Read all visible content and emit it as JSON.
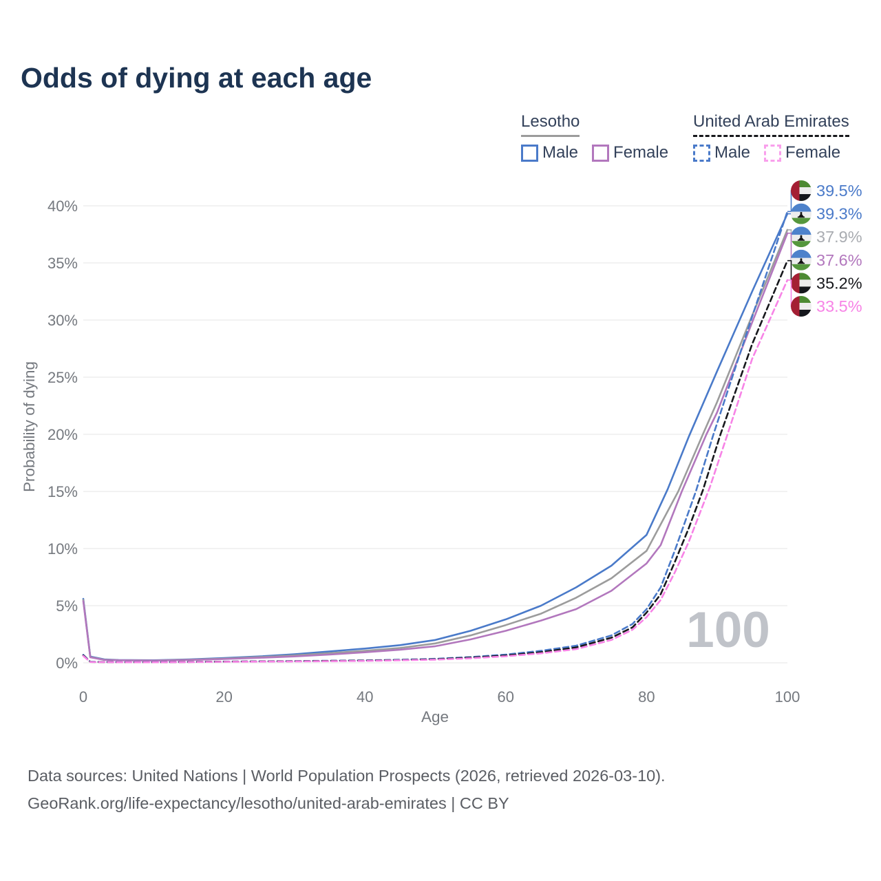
{
  "title": "Odds of dying at each age",
  "legend": {
    "groups": [
      {
        "country": "Lesotho",
        "underline_style": "solid",
        "underline_color": "#9b9b9b",
        "items": [
          {
            "label": "Male",
            "color": "#4a7ac9",
            "dash": false
          },
          {
            "label": "Female",
            "color": "#b277bd",
            "dash": false
          }
        ]
      },
      {
        "country": "United Arab Emirates",
        "underline_style": "dashed",
        "underline_color": "#17181c",
        "items": [
          {
            "label": "Male",
            "color": "#4a7ac9",
            "dash": true
          },
          {
            "label": "Female",
            "color": "#f9a0ec",
            "dash": true
          }
        ]
      }
    ]
  },
  "chart_data": {
    "type": "line",
    "title": "Odds of dying at each age",
    "xlabel": "Age",
    "ylabel": "Probability of dying",
    "xlim": [
      0,
      100
    ],
    "ylim": [
      0,
      42
    ],
    "x_ticks": [
      0,
      20,
      40,
      60,
      80,
      100
    ],
    "y_ticks": [
      "0%",
      "5%",
      "10%",
      "15%",
      "20%",
      "25%",
      "30%",
      "35%",
      "40%"
    ],
    "grid": true,
    "legend_position": "top-right",
    "watermark": "100",
    "series": [
      {
        "name": "Lesotho Male",
        "color": "#4a7ac9",
        "dash": false,
        "points": [
          [
            0,
            5.6
          ],
          [
            1,
            0.55
          ],
          [
            3,
            0.3
          ],
          [
            5,
            0.25
          ],
          [
            10,
            0.22
          ],
          [
            15,
            0.3
          ],
          [
            20,
            0.42
          ],
          [
            25,
            0.56
          ],
          [
            30,
            0.75
          ],
          [
            35,
            1.0
          ],
          [
            40,
            1.25
          ],
          [
            45,
            1.55
          ],
          [
            50,
            2.0
          ],
          [
            55,
            2.8
          ],
          [
            60,
            3.8
          ],
          [
            65,
            5.0
          ],
          [
            70,
            6.6
          ],
          [
            75,
            8.5
          ],
          [
            80,
            11.2
          ],
          [
            83,
            15.2
          ],
          [
            86,
            19.8
          ],
          [
            90,
            25.5
          ],
          [
            95,
            32.5
          ],
          [
            100,
            39.3
          ]
        ]
      },
      {
        "name": "Lesotho Total",
        "color": "#9c9c9c",
        "dash": false,
        "points": [
          [
            0,
            5.5
          ],
          [
            1,
            0.5
          ],
          [
            3,
            0.27
          ],
          [
            5,
            0.23
          ],
          [
            10,
            0.2
          ],
          [
            15,
            0.27
          ],
          [
            20,
            0.37
          ],
          [
            25,
            0.5
          ],
          [
            30,
            0.65
          ],
          [
            35,
            0.85
          ],
          [
            40,
            1.05
          ],
          [
            45,
            1.3
          ],
          [
            50,
            1.7
          ],
          [
            55,
            2.4
          ],
          [
            60,
            3.3
          ],
          [
            65,
            4.3
          ],
          [
            70,
            5.7
          ],
          [
            75,
            7.4
          ],
          [
            80,
            9.8
          ],
          [
            84.5,
            15
          ],
          [
            88,
            20
          ],
          [
            90,
            22.8
          ],
          [
            95,
            30.4
          ],
          [
            100,
            37.9
          ]
        ]
      },
      {
        "name": "Lesotho Female",
        "color": "#b277bd",
        "dash": false,
        "points": [
          [
            0,
            5.4
          ],
          [
            1,
            0.48
          ],
          [
            3,
            0.25
          ],
          [
            5,
            0.22
          ],
          [
            10,
            0.19
          ],
          [
            15,
            0.25
          ],
          [
            20,
            0.33
          ],
          [
            25,
            0.44
          ],
          [
            30,
            0.56
          ],
          [
            35,
            0.72
          ],
          [
            40,
            0.92
          ],
          [
            45,
            1.15
          ],
          [
            50,
            1.45
          ],
          [
            55,
            2.05
          ],
          [
            60,
            2.8
          ],
          [
            65,
            3.7
          ],
          [
            70,
            4.7
          ],
          [
            75,
            6.3
          ],
          [
            80,
            8.7
          ],
          [
            82,
            10.3
          ],
          [
            85,
            15
          ],
          [
            88.5,
            20
          ],
          [
            90,
            21.9
          ],
          [
            95,
            29.8
          ],
          [
            100,
            37.6
          ]
        ]
      },
      {
        "name": "United Arab Emirates Male",
        "color": "#4a7ac9",
        "dash": true,
        "points": [
          [
            0,
            0.7
          ],
          [
            1,
            0.09
          ],
          [
            5,
            0.06
          ],
          [
            10,
            0.06
          ],
          [
            15,
            0.08
          ],
          [
            20,
            0.11
          ],
          [
            30,
            0.15
          ],
          [
            40,
            0.21
          ],
          [
            45,
            0.27
          ],
          [
            50,
            0.35
          ],
          [
            55,
            0.5
          ],
          [
            60,
            0.72
          ],
          [
            65,
            1.05
          ],
          [
            70,
            1.5
          ],
          [
            75,
            2.4
          ],
          [
            78,
            3.4
          ],
          [
            80,
            4.7
          ],
          [
            82,
            6.6
          ],
          [
            84,
            9.8
          ],
          [
            87,
            15
          ],
          [
            89.5,
            20
          ],
          [
            92,
            24.7
          ],
          [
            95,
            30.3
          ],
          [
            100,
            39.5
          ]
        ]
      },
      {
        "name": "United Arab Emirates Total",
        "color": "#17181c",
        "dash": true,
        "points": [
          [
            0,
            0.65
          ],
          [
            1,
            0.08
          ],
          [
            5,
            0.05
          ],
          [
            10,
            0.05
          ],
          [
            15,
            0.07
          ],
          [
            20,
            0.1
          ],
          [
            30,
            0.14
          ],
          [
            40,
            0.19
          ],
          [
            45,
            0.24
          ],
          [
            50,
            0.31
          ],
          [
            55,
            0.45
          ],
          [
            60,
            0.64
          ],
          [
            65,
            0.93
          ],
          [
            70,
            1.35
          ],
          [
            75,
            2.2
          ],
          [
            78,
            3.1
          ],
          [
            80,
            4.4
          ],
          [
            82,
            6.0
          ],
          [
            84,
            8.8
          ],
          [
            86,
            11.8
          ],
          [
            88,
            15.1
          ],
          [
            90.5,
            20
          ],
          [
            95,
            27.9
          ],
          [
            100,
            35.2
          ]
        ]
      },
      {
        "name": "United Arab Emirates Female",
        "color": "#f783e6",
        "dash": true,
        "points": [
          [
            0,
            0.6
          ],
          [
            1,
            0.07
          ],
          [
            5,
            0.05
          ],
          [
            10,
            0.05
          ],
          [
            15,
            0.06
          ],
          [
            20,
            0.09
          ],
          [
            30,
            0.12
          ],
          [
            40,
            0.17
          ],
          [
            45,
            0.22
          ],
          [
            50,
            0.28
          ],
          [
            55,
            0.4
          ],
          [
            60,
            0.57
          ],
          [
            65,
            0.83
          ],
          [
            70,
            1.2
          ],
          [
            75,
            2.0
          ],
          [
            78,
            2.9
          ],
          [
            80,
            4.0
          ],
          [
            82,
            5.5
          ],
          [
            84,
            7.9
          ],
          [
            86,
            10.6
          ],
          [
            89,
            15.4
          ],
          [
            91.5,
            20
          ],
          [
            95,
            26.6
          ],
          [
            100,
            33.5
          ]
        ]
      }
    ],
    "end_labels": [
      {
        "value": "39.5%",
        "end": 39.5,
        "color": "#4a7ac9",
        "flag": "are",
        "series": "United Arab Emirates Male"
      },
      {
        "value": "39.3%",
        "end": 39.3,
        "color": "#4a7ac9",
        "flag": "lso",
        "series": "Lesotho Male"
      },
      {
        "value": "37.9%",
        "end": 37.9,
        "color": "#a9acb1",
        "flag": "lso",
        "series": "Lesotho Total"
      },
      {
        "value": "37.6%",
        "end": 37.6,
        "color": "#b277bd",
        "flag": "lso",
        "series": "Lesotho Female"
      },
      {
        "value": "35.2%",
        "end": 35.2,
        "color": "#17181c",
        "flag": "are",
        "series": "United Arab Emirates Total"
      },
      {
        "value": "33.5%",
        "end": 33.5,
        "color": "#f783e6",
        "flag": "are",
        "series": "United Arab Emirates Female"
      }
    ],
    "flag_colors": {
      "lso": {
        "blue": "#4e82cb",
        "white": "#ededed",
        "green": "#55973d",
        "hat": "#141414"
      },
      "are": {
        "red": "#a41f34",
        "green": "#4d8a33",
        "white": "#ededed",
        "black": "#15171c"
      }
    }
  },
  "footer": {
    "line1": "Data sources: United Nations | World Population Prospects (2026, retrieved 2026-03-10).",
    "line2": "GeoRank.org/life-expectancy/lesotho/united-arab-emirates | CC BY"
  }
}
